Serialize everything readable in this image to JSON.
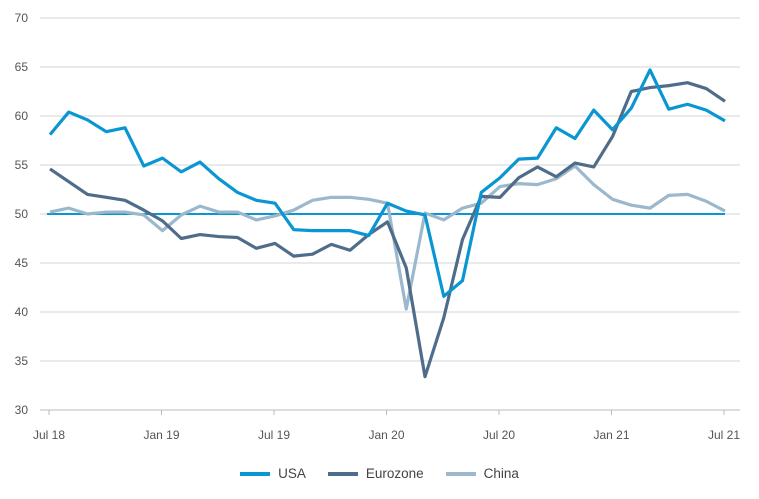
{
  "chart_data": {
    "type": "line",
    "title": "",
    "xlabel": "",
    "ylabel": "",
    "ylim": [
      30,
      70
    ],
    "yticks": [
      "30",
      "35",
      "40",
      "45",
      "50",
      "55",
      "60",
      "65",
      "70"
    ],
    "xtick_labels": [
      "Jul 18",
      "Jan 19",
      "Jul 19",
      "Jan 20",
      "Jul 20",
      "Jan 21",
      "Jul 21"
    ],
    "x_months": 37,
    "reference_line": 50,
    "legend_position": "bottom",
    "series": [
      {
        "name": "USA",
        "color": "#0a96d2",
        "values": [
          58.1,
          60.4,
          59.6,
          58.4,
          58.8,
          54.9,
          55.7,
          54.3,
          55.3,
          53.6,
          52.2,
          51.4,
          51.1,
          48.4,
          48.3,
          48.3,
          48.3,
          47.8,
          51.1,
          50.3,
          49.9,
          41.6,
          43.2,
          52.2,
          53.7,
          55.6,
          55.7,
          58.8,
          57.7,
          60.6,
          58.6,
          60.8,
          64.7,
          60.7,
          61.2,
          60.6,
          59.5
        ]
      },
      {
        "name": "Eurozone",
        "color": "#4f6d8a",
        "values": [
          54.6,
          53.3,
          52.0,
          51.7,
          51.4,
          50.4,
          49.3,
          47.5,
          47.9,
          47.7,
          47.6,
          46.5,
          47.0,
          45.7,
          45.9,
          46.9,
          46.3,
          47.9,
          49.2,
          44.5,
          33.4,
          39.4,
          47.4,
          51.8,
          51.7,
          53.7,
          54.8,
          53.8,
          55.2,
          54.8,
          57.9,
          62.5,
          62.9,
          63.1,
          63.4,
          62.8,
          61.5
        ]
      },
      {
        "name": "China",
        "color": "#9bb8cc",
        "values": [
          50.2,
          50.6,
          50.0,
          50.2,
          50.2,
          49.9,
          48.3,
          49.9,
          50.8,
          50.2,
          50.2,
          49.4,
          49.8,
          50.4,
          51.4,
          51.7,
          51.7,
          51.5,
          51.1,
          40.3,
          50.1,
          49.4,
          50.6,
          51.1,
          52.8,
          53.1,
          53.0,
          53.6,
          54.9,
          53.0,
          51.5,
          50.9,
          50.6,
          51.9,
          52.0,
          51.3,
          50.3
        ]
      }
    ]
  }
}
